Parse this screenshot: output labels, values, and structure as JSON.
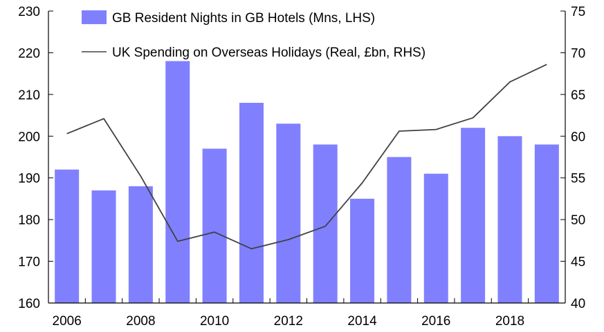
{
  "chart_data": {
    "type": "bar",
    "categories": [
      "2006",
      "2007",
      "2008",
      "2009",
      "2010",
      "2011",
      "2012",
      "2013",
      "2014",
      "2015",
      "2016",
      "2017",
      "2018",
      "2019"
    ],
    "x_tick_labels": [
      "2006",
      "2008",
      "2010",
      "2012",
      "2014",
      "2016",
      "2018"
    ],
    "series": [
      {
        "name": "GB Resident Nights in GB Hotels (Mns, LHS)",
        "type": "bar",
        "axis": "left",
        "color": "#8080ff",
        "values": [
          192,
          187,
          188,
          218,
          197,
          208,
          203,
          198,
          185,
          195,
          191,
          202,
          200,
          198
        ]
      },
      {
        "name": "UK Spending on Overseas Holidays (Real, £bn, RHS)",
        "type": "line",
        "axis": "right",
        "color": "#404040",
        "values": [
          60.3,
          62.1,
          55.2,
          47.4,
          48.5,
          46.5,
          47.6,
          49.2,
          54.4,
          60.6,
          60.8,
          62.2,
          66.5,
          68.6
        ]
      }
    ],
    "y_left": {
      "ylim": [
        160,
        230
      ],
      "ticks": [
        "160",
        "170",
        "180",
        "190",
        "200",
        "210",
        "220",
        "230"
      ]
    },
    "y_right": {
      "ylim": [
        40,
        75
      ],
      "ticks": [
        "40",
        "45",
        "50",
        "55",
        "60",
        "65",
        "70",
        "75"
      ]
    },
    "grid": false,
    "legend_position": "top-left"
  }
}
